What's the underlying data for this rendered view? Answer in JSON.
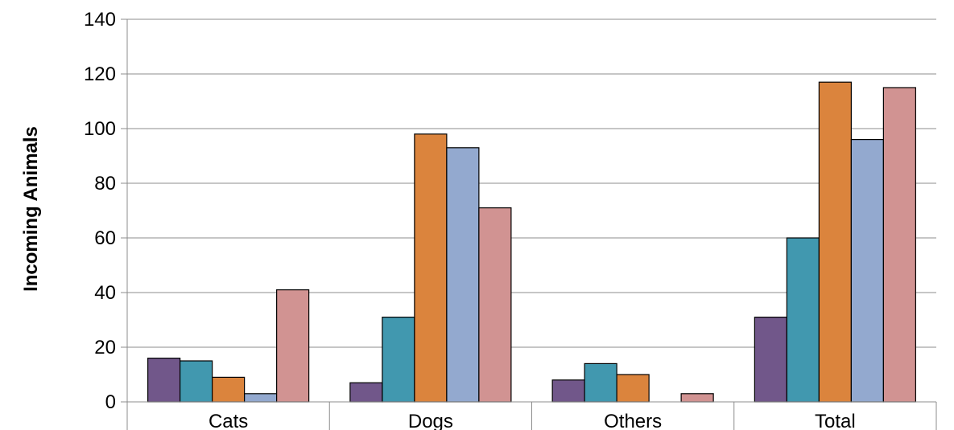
{
  "chart_data": {
    "type": "bar",
    "title": "",
    "xlabel": "",
    "ylabel": "Incoming Animals",
    "categories": [
      "Cats",
      "Dogs",
      "Others",
      "Total"
    ],
    "ylim": [
      0,
      140
    ],
    "yticks": [
      0,
      20,
      40,
      60,
      80,
      100,
      120,
      140
    ],
    "grid": true,
    "legend": "none",
    "series": [
      {
        "values": [
          16,
          7,
          8,
          31
        ],
        "color": "#71578A"
      },
      {
        "values": [
          15,
          31,
          14,
          60
        ],
        "color": "#4198AF"
      },
      {
        "values": [
          9,
          98,
          10,
          117
        ],
        "color": "#DB843D"
      },
      {
        "values": [
          3,
          93,
          0,
          96
        ],
        "color": "#93A9CF"
      },
      {
        "values": [
          41,
          71,
          3,
          115
        ],
        "color": "#D19392"
      }
    ]
  }
}
